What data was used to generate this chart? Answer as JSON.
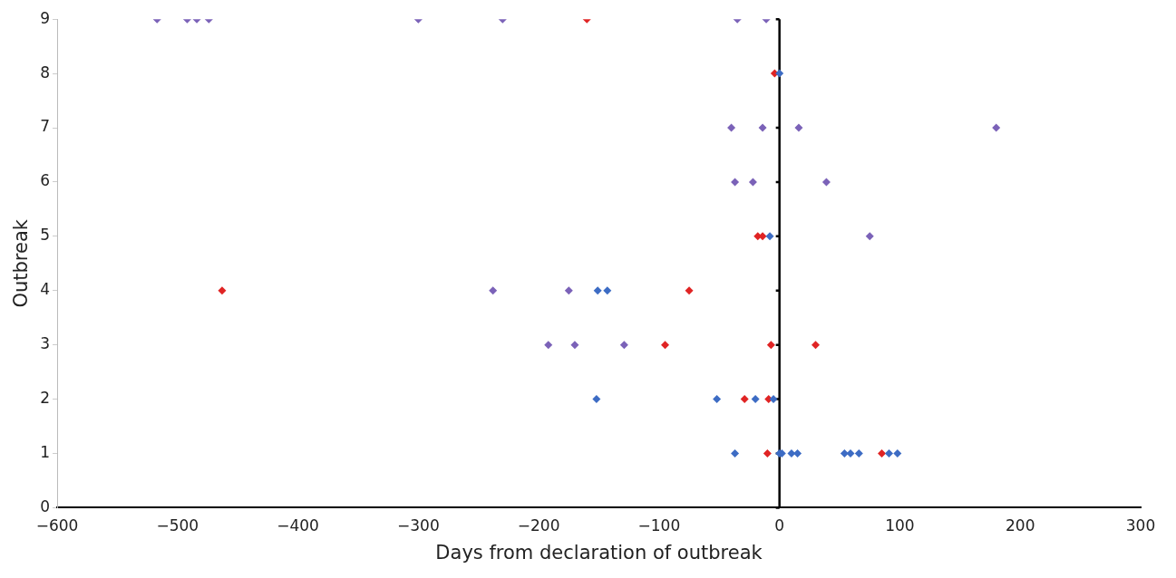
{
  "chart_data": {
    "type": "scatter",
    "xlabel": "Days from declaration of outbreak",
    "ylabel": "Outbreak",
    "xlim": [
      -600,
      300
    ],
    "xticks": [
      -600,
      -500,
      -400,
      -300,
      -200,
      -100,
      0,
      100,
      200,
      300
    ],
    "ylim": [
      0,
      9
    ],
    "yticks": [
      0,
      1,
      2,
      3,
      4,
      5,
      6,
      7,
      8,
      9
    ],
    "grid": false,
    "legend": false,
    "marker": "diamond",
    "ref_lines": [
      {
        "axis": "x",
        "value": 0,
        "color": "#000000"
      }
    ],
    "series": [
      {
        "color": "#7b62b8",
        "x": [
          -517,
          -492,
          -484,
          -474,
          -300,
          -230,
          -35,
          -11,
          -40,
          -14,
          16,
          180,
          -37,
          -22,
          39,
          75,
          -238,
          -175,
          -192,
          -170,
          -129
        ],
        "values": [
          9,
          9,
          9,
          9,
          9,
          9,
          9,
          9,
          7,
          7,
          7,
          7,
          6,
          6,
          6,
          5,
          4,
          4,
          3,
          3,
          3
        ]
      },
      {
        "color": "#3d6cc4",
        "x": [
          0,
          -8,
          -151,
          -143,
          -152,
          -52,
          -20,
          -5,
          -37,
          -2,
          0,
          2,
          10,
          15,
          54,
          59,
          66,
          91,
          98
        ],
        "values": [
          8,
          5,
          4,
          4,
          2,
          2,
          2,
          2,
          1,
          null,
          1,
          1,
          1,
          1,
          1,
          1,
          1,
          1,
          1
        ]
      },
      {
        "color": "#e02424",
        "x": [
          -160,
          -4,
          -18,
          -14,
          -463,
          -75,
          -95,
          -7,
          30,
          -29,
          -9,
          -10,
          85
        ],
        "values": [
          9,
          8,
          5,
          5,
          4,
          4,
          3,
          3,
          3,
          2,
          2,
          1,
          1
        ]
      }
    ]
  }
}
